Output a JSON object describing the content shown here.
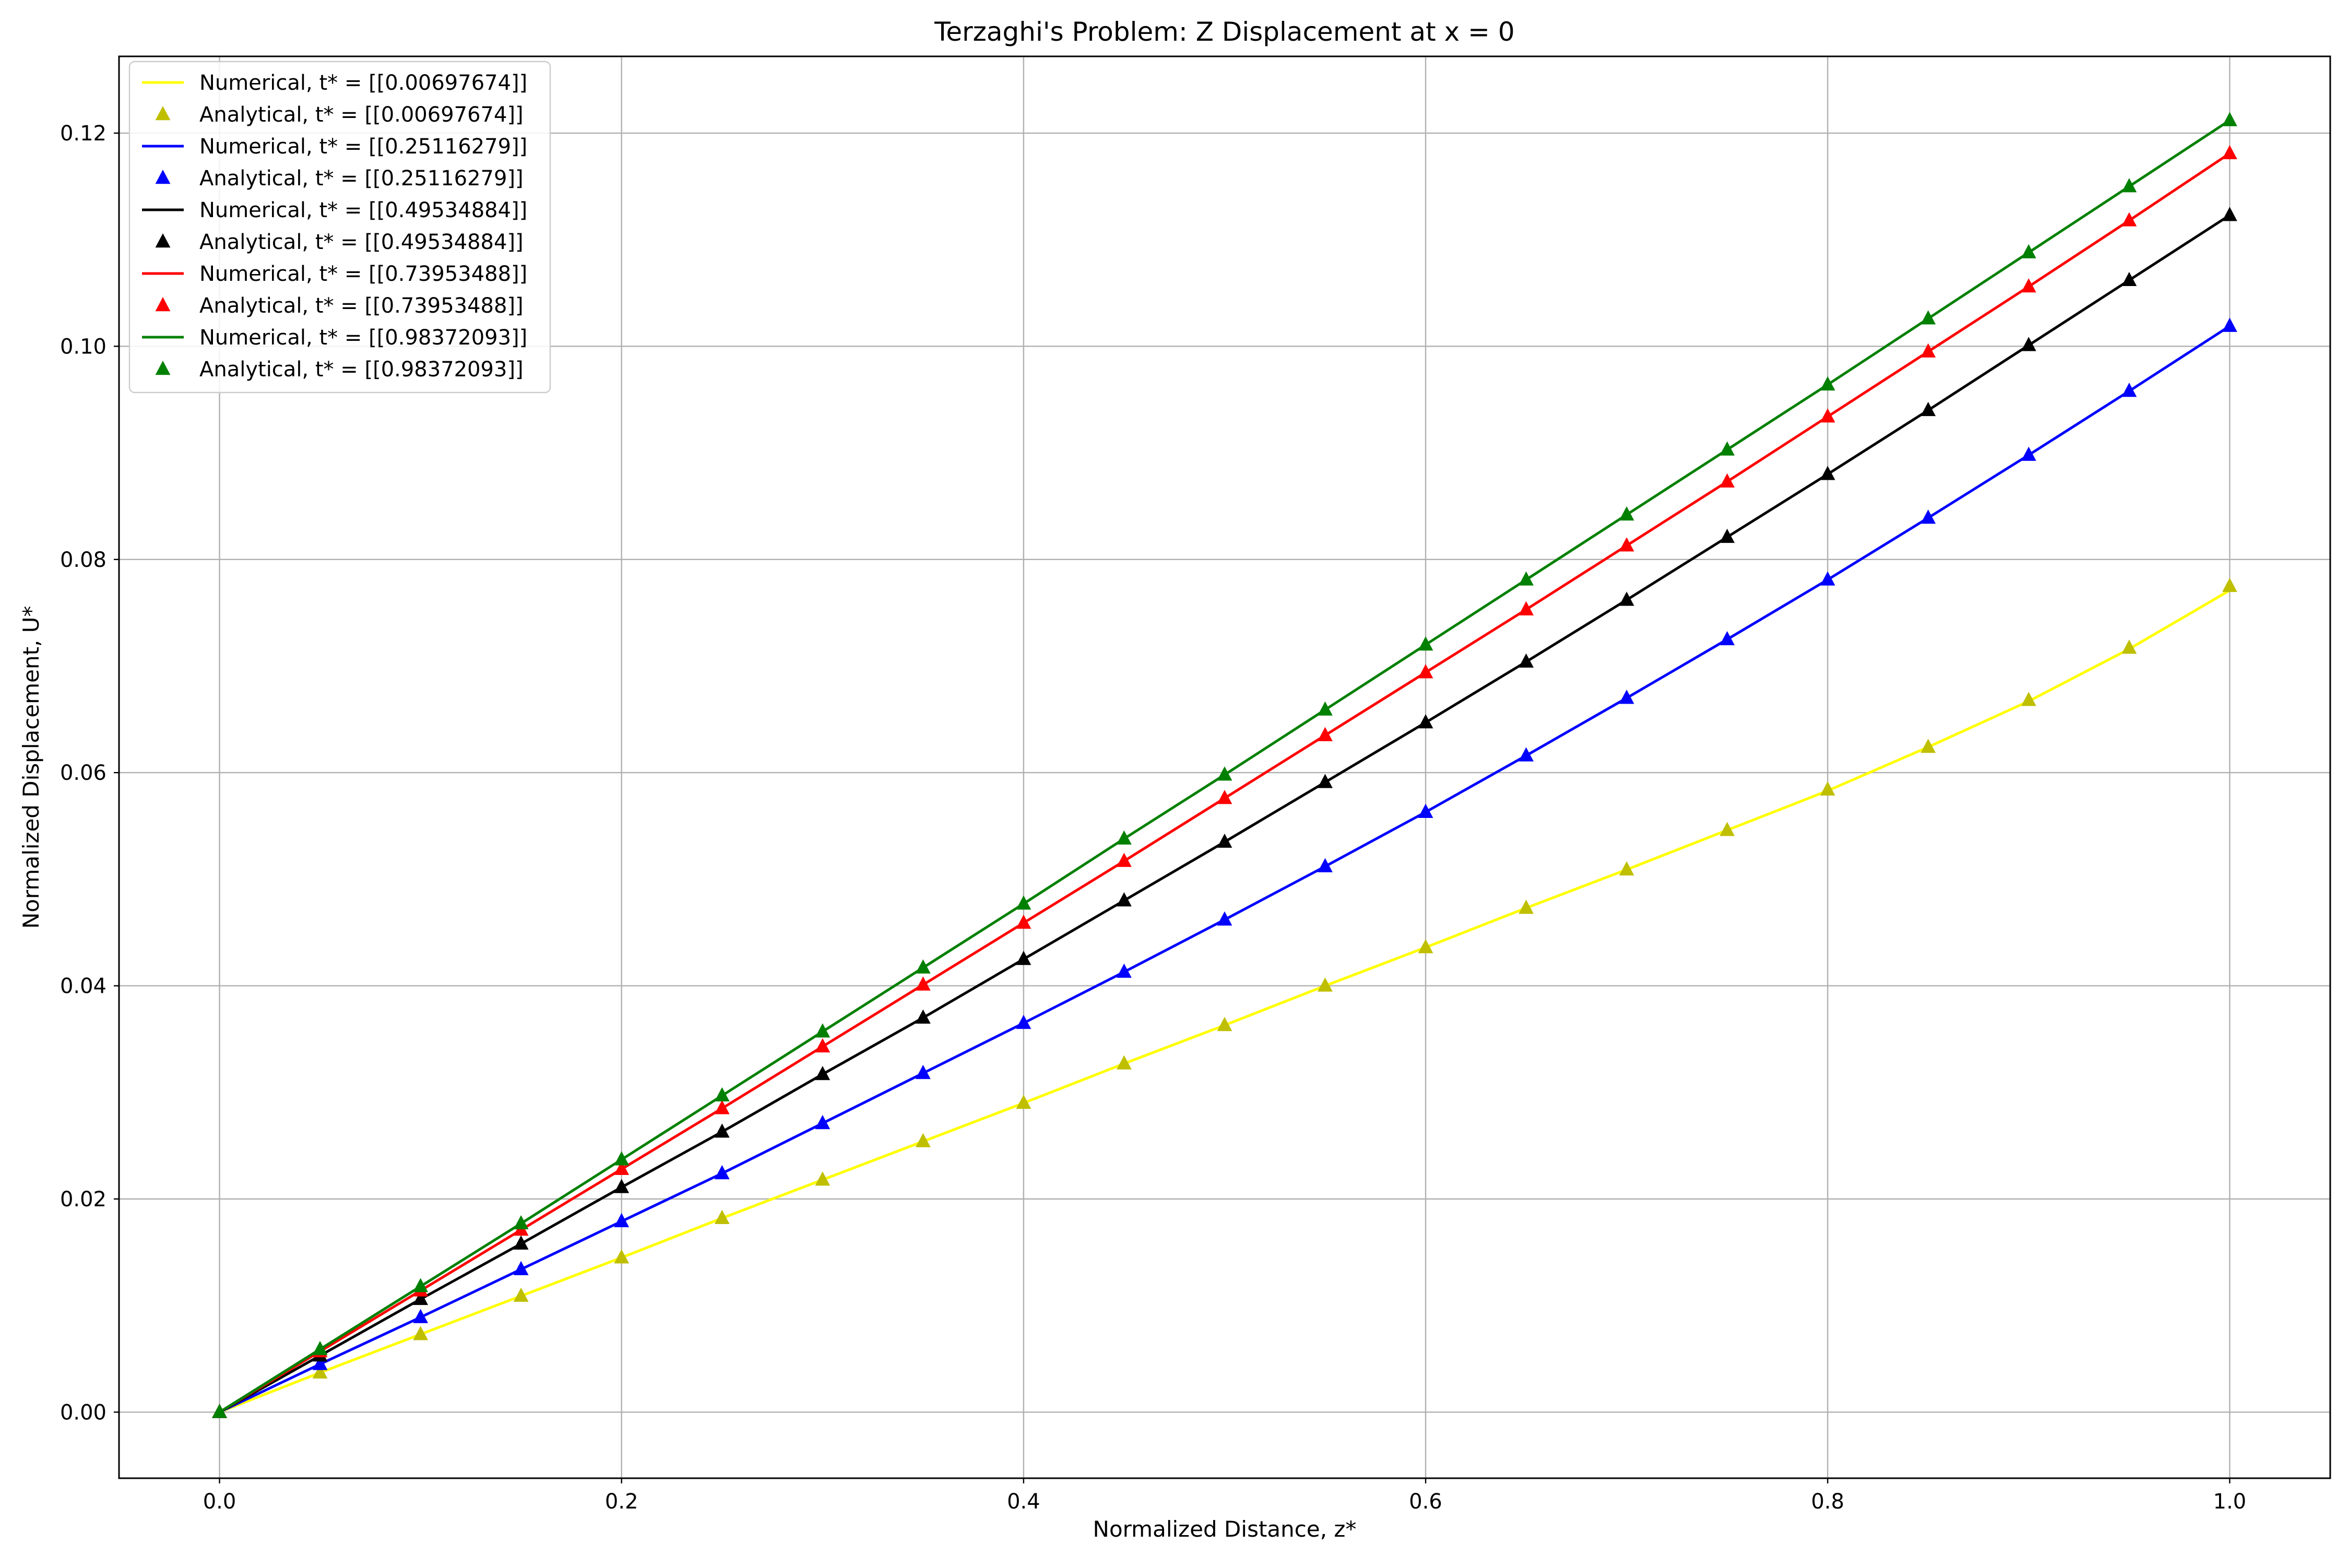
{
  "chart_data": {
    "type": "line",
    "title": "Terzaghi's Problem: Z Displacement at x = 0",
    "xlabel": "Normalized Distance, z*",
    "ylabel": "Normalized Displacement, U*",
    "xlim": [
      -0.05,
      1.05
    ],
    "ylim": [
      -0.0062,
      0.1272
    ],
    "xticks": [
      0.0,
      0.2,
      0.4,
      0.6,
      0.8,
      1.0
    ],
    "xtick_labels": [
      "0.0",
      "0.2",
      "0.4",
      "0.6",
      "0.8",
      "1.0"
    ],
    "yticks": [
      0.0,
      0.02,
      0.04,
      0.06,
      0.08,
      0.1,
      0.12
    ],
    "ytick_labels": [
      "0.00",
      "0.02",
      "0.04",
      "0.06",
      "0.08",
      "0.10",
      "0.12"
    ],
    "grid": true,
    "legend_position": "top-left",
    "x": [
      0.0,
      0.05,
      0.1,
      0.15,
      0.2,
      0.25,
      0.3,
      0.35,
      0.4,
      0.45,
      0.5,
      0.55,
      0.6,
      0.65,
      0.7,
      0.75,
      0.8,
      0.85,
      0.9,
      0.95,
      1.0
    ],
    "series": [
      {
        "name": "Numerical, t* = [[0.00697674]]",
        "style": "line",
        "color": "#ffff00",
        "values": [
          0.0,
          0.0037,
          0.0073,
          0.0109,
          0.0145,
          0.0182,
          0.0218,
          0.0254,
          0.029,
          0.0327,
          0.0363,
          0.04,
          0.0436,
          0.0473,
          0.0509,
          0.0546,
          0.0583,
          0.0624,
          0.0667,
          0.0716,
          0.0771
        ]
      },
      {
        "name": "Analytical, t* = [[0.00697674]]",
        "style": "marker",
        "color": "#bfbf00",
        "values": [
          0.0,
          0.0037,
          0.0073,
          0.0109,
          0.0145,
          0.0182,
          0.0218,
          0.0254,
          0.029,
          0.0327,
          0.0363,
          0.04,
          0.0436,
          0.0473,
          0.0509,
          0.0546,
          0.0584,
          0.0624,
          0.0668,
          0.0717,
          0.0775
        ]
      },
      {
        "name": "Numerical, t* = [[0.25116279]]",
        "style": "line",
        "color": "#0000ff",
        "values": [
          0.0,
          0.0045,
          0.0089,
          0.0134,
          0.0179,
          0.0224,
          0.0271,
          0.0318,
          0.0365,
          0.0413,
          0.0462,
          0.0512,
          0.0563,
          0.0616,
          0.067,
          0.0725,
          0.0781,
          0.0839,
          0.0898,
          0.0958,
          0.1019
        ]
      },
      {
        "name": "Analytical, t* = [[0.25116279]]",
        "style": "marker",
        "color": "#0000ff",
        "values": [
          0.0,
          0.0045,
          0.0089,
          0.0134,
          0.0179,
          0.0224,
          0.0271,
          0.0318,
          0.0365,
          0.0413,
          0.0462,
          0.0512,
          0.0563,
          0.0616,
          0.067,
          0.0725,
          0.0781,
          0.0839,
          0.0898,
          0.0958,
          0.1019
        ]
      },
      {
        "name": "Numerical, t* = [[0.49534884]]",
        "style": "line",
        "color": "#000000",
        "values": [
          0.0,
          0.0053,
          0.0106,
          0.0158,
          0.0211,
          0.0263,
          0.0317,
          0.037,
          0.0425,
          0.048,
          0.0535,
          0.0591,
          0.0647,
          0.0704,
          0.0762,
          0.0821,
          0.088,
          0.094,
          0.1001,
          0.1062,
          0.1123
        ]
      },
      {
        "name": "Analytical, t* = [[0.49534884]]",
        "style": "marker",
        "color": "#000000",
        "values": [
          0.0,
          0.0053,
          0.0106,
          0.0158,
          0.0211,
          0.0263,
          0.0317,
          0.037,
          0.0425,
          0.048,
          0.0535,
          0.0591,
          0.0647,
          0.0704,
          0.0762,
          0.0821,
          0.088,
          0.094,
          0.1001,
          0.1062,
          0.1123
        ]
      },
      {
        "name": "Numerical, t* = [[0.73953488]]",
        "style": "line",
        "color": "#ff0000",
        "values": [
          0.0,
          0.0057,
          0.0114,
          0.0171,
          0.0228,
          0.0285,
          0.0343,
          0.0401,
          0.0459,
          0.0517,
          0.0576,
          0.0635,
          0.0694,
          0.0753,
          0.0813,
          0.0873,
          0.0934,
          0.0995,
          0.1056,
          0.1118,
          0.1181
        ]
      },
      {
        "name": "Analytical, t* = [[0.73953488]]",
        "style": "marker",
        "color": "#ff0000",
        "values": [
          0.0,
          0.0057,
          0.0114,
          0.0171,
          0.0228,
          0.0285,
          0.0343,
          0.0401,
          0.0459,
          0.0517,
          0.0576,
          0.0635,
          0.0694,
          0.0753,
          0.0813,
          0.0873,
          0.0934,
          0.0995,
          0.1056,
          0.1118,
          0.1181
        ]
      },
      {
        "name": "Numerical, t* = [[0.98372093]]",
        "style": "line",
        "color": "#008000",
        "values": [
          0.0,
          0.0059,
          0.0118,
          0.0177,
          0.0237,
          0.0297,
          0.0357,
          0.0417,
          0.0477,
          0.0538,
          0.0598,
          0.0659,
          0.072,
          0.0781,
          0.0842,
          0.0903,
          0.0964,
          0.1026,
          0.1088,
          0.115,
          0.1212
        ]
      },
      {
        "name": "Analytical, t* = [[0.98372093]]",
        "style": "marker",
        "color": "#008000",
        "values": [
          0.0,
          0.0059,
          0.0118,
          0.0177,
          0.0237,
          0.0297,
          0.0357,
          0.0417,
          0.0477,
          0.0538,
          0.0598,
          0.0659,
          0.072,
          0.0781,
          0.0842,
          0.0903,
          0.0964,
          0.1026,
          0.1088,
          0.115,
          0.1212
        ]
      }
    ]
  }
}
